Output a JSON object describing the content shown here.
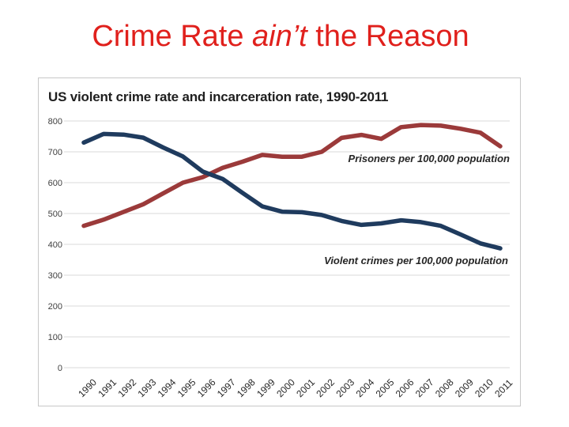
{
  "slide": {
    "title_before": "Crime Rate ",
    "title_emph": "ain’t",
    "title_after": " the Reason"
  },
  "colors": {
    "title": "#e0201c",
    "prisoners_line": "#9b3a3a",
    "crime_line": "#1f3b5e",
    "grid": "#d9d9d9"
  },
  "chart_data": {
    "type": "line",
    "title": "US violent crime rate and incarceration rate, 1990-2011",
    "xlabel": "",
    "ylabel": "",
    "ylim": [
      0,
      800
    ],
    "yticks": [
      0,
      100,
      200,
      300,
      400,
      500,
      600,
      700,
      800
    ],
    "grid": true,
    "x": [
      "1990",
      "1991",
      "1992",
      "1993",
      "1994",
      "1995",
      "1996",
      "1997",
      "1998",
      "1999",
      "2000",
      "2001",
      "2002",
      "2003",
      "2004",
      "2005",
      "2006",
      "2007",
      "2008",
      "2009",
      "2010",
      "2011"
    ],
    "series": [
      {
        "name": "Prisoners per 100,000 population",
        "color": "#9b3a3a",
        "values": [
          460,
          480,
          505,
          530,
          565,
          600,
          618,
          648,
          668,
          690,
          684,
          684,
          700,
          745,
          755,
          742,
          780,
          787,
          785,
          775,
          762,
          718
        ]
      },
      {
        "name": "Violent crimes per 100,000 population",
        "color": "#1f3b5e",
        "values": [
          730,
          758,
          756,
          746,
          714,
          685,
          636,
          612,
          567,
          523,
          506,
          504,
          495,
          476,
          463,
          468,
          478,
          472,
          460,
          432,
          403,
          387
        ]
      }
    ]
  }
}
